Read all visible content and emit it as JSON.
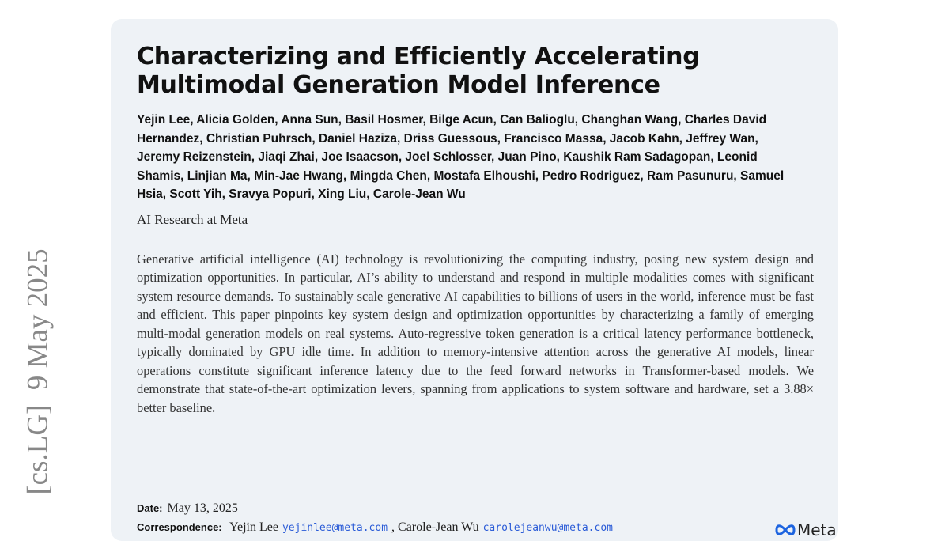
{
  "arxiv_stamp": "[cs.LG]  9 May 2025",
  "header": {
    "title": "Characterizing and Efficiently Accelerating Multimodal Generation Model Inference",
    "authors": "Yejin Lee, Alicia Golden, Anna Sun, Basil Hosmer, Bilge Acun, Can Balioglu, Changhan Wang, Charles David Hernandez, Christian Puhrsch, Daniel Haziza, Driss Guessous, Francisco Massa, Jacob Kahn, Jeffrey Wan, Jeremy Reizenstein, Jiaqi Zhai, Joe Isaacson, Joel Schlosser, Juan Pino, Kaushik Ram Sadagopan, Leonid Shamis, Linjian Ma, Min-Jae Hwang, Mingda Chen, Mostafa Elhoushi, Pedro Rodriguez, Ram Pasunuru, Samuel Hsia, Scott Yih, Sravya Popuri, Xing Liu, Carole-Jean Wu",
    "affiliation": "AI Research at Meta"
  },
  "abstract": "Generative artificial intelligence (AI) technology is revolutionizing the computing industry, posing new system design and optimization opportunities. In particular, AI’s ability to understand and respond in multiple modalities comes with significant system resource demands. To sustainably scale generative AI capabilities to billions of users in the world, inference must be fast and efficient. This paper pinpoints key system design and optimization opportunities by characterizing a family of emerging multi-modal generation models on real systems. Auto-regressive token generation is a critical latency performance bottleneck, typically dominated by GPU idle time. In addition to memory-intensive attention across the generative AI models, linear operations constitute significant inference latency due to the feed forward networks in Transformer-based models. We demonstrate that state-of-the-art optimization levers, spanning from applications to system software and hardware, set a 3.88× better baseline.",
  "footer": {
    "date_label": "Date:",
    "date": "May 13, 2025",
    "correspondence_label": "Correspondence:",
    "correspondence": [
      {
        "text": "Yejin Lee"
      },
      {
        "text": "yejinlee@meta.com",
        "link": true
      },
      {
        "text": ", Carole-Jean Wu"
      },
      {
        "text": "carolejeanwu@meta.com",
        "link": true
      }
    ],
    "logo": "Meta"
  }
}
